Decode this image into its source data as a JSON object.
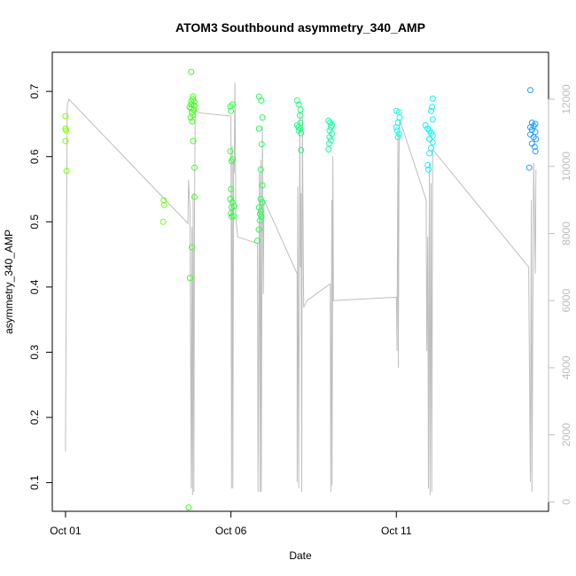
{
  "chart_data": {
    "type": "scatter",
    "title": "ATOM3 Southbound asymmetry_340_AMP",
    "xlabel": "Date",
    "ylabel": "asymmetry_340_AMP",
    "x_ticks": [
      "Oct 01",
      "Oct 06",
      "Oct 11"
    ],
    "x_tick_values": [
      0,
      5,
      10
    ],
    "xlim": [
      -0.4,
      14.6
    ],
    "y_ticks": [
      0.1,
      0.2,
      0.3,
      0.4,
      0.5,
      0.6,
      0.7
    ],
    "ylim": [
      0.056,
      0.76
    ],
    "y2_ticks": [
      0,
      2000,
      4000,
      6000,
      8000,
      10000,
      12000
    ],
    "y2lim": [
      -280,
      13400
    ],
    "colors": {
      "line": "#bebebe",
      "axis": "#000000",
      "right_axis": "#bdbdbd"
    },
    "series": [
      {
        "type": "points",
        "marker": "open-circle",
        "points": [
          [
            0.0,
            0.662,
            "#7fff00"
          ],
          [
            0.0,
            0.643,
            "#7fff00"
          ],
          [
            0.02,
            0.64,
            "#7fff00"
          ],
          [
            0.0,
            0.624,
            "#7fff00"
          ],
          [
            0.03,
            0.578,
            "#7fff00"
          ],
          [
            2.97,
            0.533,
            "#6fff10"
          ],
          [
            2.98,
            0.526,
            "#6fff10"
          ],
          [
            2.95,
            0.5,
            "#6fff10"
          ],
          [
            3.8,
            0.73,
            "#40ff20"
          ],
          [
            3.8,
            0.685,
            "#40ff20"
          ],
          [
            3.85,
            0.692,
            "#40ff20"
          ],
          [
            3.85,
            0.688,
            "#40ff20"
          ],
          [
            3.9,
            0.684,
            "#40ff20"
          ],
          [
            3.8,
            0.68,
            "#40ff20"
          ],
          [
            3.9,
            0.678,
            "#40ff20"
          ],
          [
            3.75,
            0.676,
            "#40ff20"
          ],
          [
            3.8,
            0.674,
            "#40ff20"
          ],
          [
            3.88,
            0.672,
            "#40ff20"
          ],
          [
            3.82,
            0.668,
            "#40ff20"
          ],
          [
            3.85,
            0.664,
            "#40ff20"
          ],
          [
            3.78,
            0.66,
            "#40ff20"
          ],
          [
            3.83,
            0.654,
            "#40ff20"
          ],
          [
            3.86,
            0.624,
            "#40ff20"
          ],
          [
            3.9,
            0.583,
            "#40ff20"
          ],
          [
            3.9,
            0.538,
            "#40ff20"
          ],
          [
            3.82,
            0.461,
            "#40ff20"
          ],
          [
            3.76,
            0.414,
            "#40ff20"
          ],
          [
            3.72,
            0.062,
            "#40ff20"
          ],
          [
            4.98,
            0.677,
            "#30ff40"
          ],
          [
            5.05,
            0.68,
            "#30ff40"
          ],
          [
            5.0,
            0.67,
            "#30ff40"
          ],
          [
            4.98,
            0.608,
            "#30ff40"
          ],
          [
            5.05,
            0.596,
            "#30ff40"
          ],
          [
            5.02,
            0.593,
            "#30ff40"
          ],
          [
            5.0,
            0.55,
            "#30ff40"
          ],
          [
            4.98,
            0.535,
            "#30ff40"
          ],
          [
            5.04,
            0.53,
            "#30ff40"
          ],
          [
            5.1,
            0.524,
            "#30ff40"
          ],
          [
            5.02,
            0.522,
            "#30ff40"
          ],
          [
            5.0,
            0.513,
            "#30ff40"
          ],
          [
            5.08,
            0.509,
            "#30ff40"
          ],
          [
            5.02,
            0.508,
            "#30ff40"
          ],
          [
            5.85,
            0.692,
            "#28ff58"
          ],
          [
            5.92,
            0.686,
            "#28ff58"
          ],
          [
            5.95,
            0.66,
            "#28ff58"
          ],
          [
            5.85,
            0.643,
            "#28ff58"
          ],
          [
            5.93,
            0.619,
            "#28ff58"
          ],
          [
            5.9,
            0.58,
            "#28ff58"
          ],
          [
            5.95,
            0.556,
            "#28ff58"
          ],
          [
            5.9,
            0.535,
            "#28ff58"
          ],
          [
            5.95,
            0.53,
            "#28ff58"
          ],
          [
            5.85,
            0.522,
            "#28ff58"
          ],
          [
            5.9,
            0.516,
            "#28ff58"
          ],
          [
            5.88,
            0.512,
            "#28ff58"
          ],
          [
            5.92,
            0.508,
            "#28ff58"
          ],
          [
            5.87,
            0.502,
            "#28ff58"
          ],
          [
            5.84,
            0.488,
            "#28ff58"
          ],
          [
            5.8,
            0.471,
            "#28ff58"
          ],
          [
            7.0,
            0.686,
            "#20ff80"
          ],
          [
            7.05,
            0.68,
            "#20ff80"
          ],
          [
            7.1,
            0.672,
            "#20ff80"
          ],
          [
            7.08,
            0.663,
            "#20ff80"
          ],
          [
            7.1,
            0.652,
            "#20ff80"
          ],
          [
            7.0,
            0.648,
            "#20ff80"
          ],
          [
            7.05,
            0.645,
            "#20ff80"
          ],
          [
            7.1,
            0.643,
            "#20ff80"
          ],
          [
            7.05,
            0.64,
            "#20ff80"
          ],
          [
            7.12,
            0.636,
            "#20ff80"
          ],
          [
            7.12,
            0.61,
            "#20ff80"
          ],
          [
            7.95,
            0.655,
            "#18ffa0"
          ],
          [
            8.0,
            0.652,
            "#18ffa0"
          ],
          [
            8.05,
            0.648,
            "#18ffa0"
          ],
          [
            8.02,
            0.645,
            "#18ffa0"
          ],
          [
            7.98,
            0.64,
            "#18ffa0"
          ],
          [
            8.05,
            0.635,
            "#18ffa0"
          ],
          [
            7.98,
            0.63,
            "#18ffa0"
          ],
          [
            8.02,
            0.625,
            "#18ffa0"
          ],
          [
            7.97,
            0.62,
            "#18ffa0"
          ],
          [
            7.95,
            0.611,
            "#18ffa0"
          ],
          [
            10.0,
            0.67,
            "#10ffe0"
          ],
          [
            10.08,
            0.668,
            "#10ffe0"
          ],
          [
            10.1,
            0.66,
            "#10ffe0"
          ],
          [
            10.05,
            0.652,
            "#10ffe0"
          ],
          [
            10.0,
            0.645,
            "#10ffe0"
          ],
          [
            10.02,
            0.64,
            "#10ffe0"
          ],
          [
            10.08,
            0.635,
            "#10ffe0"
          ],
          [
            10.05,
            0.63,
            "#10ffe0"
          ],
          [
            10.88,
            0.648,
            "#10f0ff"
          ],
          [
            10.95,
            0.643,
            "#10f0ff"
          ],
          [
            11.0,
            0.64,
            "#10f0ff"
          ],
          [
            11.05,
            0.636,
            "#10f0ff"
          ],
          [
            11.1,
            0.632,
            "#10f0ff"
          ],
          [
            11.0,
            0.627,
            "#10f0ff"
          ],
          [
            11.1,
            0.622,
            "#10f0ff"
          ],
          [
            11.05,
            0.613,
            "#10f0ff"
          ],
          [
            11.0,
            0.605,
            "#10f0ff"
          ],
          [
            11.1,
            0.689,
            "#10f0ff"
          ],
          [
            11.08,
            0.676,
            "#10f0ff"
          ],
          [
            11.05,
            0.67,
            "#10f0ff"
          ],
          [
            11.1,
            0.657,
            "#10f0ff"
          ],
          [
            10.95,
            0.587,
            "#10f0ff"
          ],
          [
            10.97,
            0.58,
            "#10f0ff"
          ],
          [
            14.05,
            0.702,
            "#1ea0ff"
          ],
          [
            14.1,
            0.652,
            "#1ea0ff"
          ],
          [
            14.2,
            0.65,
            "#1ea0ff"
          ],
          [
            14.15,
            0.647,
            "#1ea0ff"
          ],
          [
            14.05,
            0.645,
            "#1ea0ff"
          ],
          [
            14.1,
            0.641,
            "#1ea0ff"
          ],
          [
            14.2,
            0.638,
            "#1ea0ff"
          ],
          [
            14.05,
            0.634,
            "#1ea0ff"
          ],
          [
            14.15,
            0.63,
            "#1ea0ff"
          ],
          [
            14.22,
            0.627,
            "#1ea0ff"
          ],
          [
            14.1,
            0.62,
            "#1ea0ff"
          ],
          [
            14.18,
            0.615,
            "#1ea0ff"
          ],
          [
            14.2,
            0.608,
            "#1ea0ff"
          ],
          [
            14.02,
            0.583,
            "#1ea0ff"
          ]
        ]
      },
      {
        "type": "line",
        "axis": "right",
        "points": [
          [
            0.0,
            1500
          ],
          [
            0.05,
            11800
          ],
          [
            0.1,
            12000
          ],
          [
            3.7,
            8300
          ],
          [
            3.72,
            9600
          ],
          [
            3.76,
            8800
          ],
          [
            3.8,
            400
          ],
          [
            3.82,
            8200
          ],
          [
            3.84,
            200
          ],
          [
            3.86,
            9200
          ],
          [
            3.88,
            300
          ],
          [
            3.9,
            8600
          ],
          [
            3.92,
            11700
          ],
          [
            4.0,
            11600
          ],
          [
            5.0,
            11500
          ],
          [
            5.02,
            400
          ],
          [
            5.04,
            10600
          ],
          [
            5.06,
            400
          ],
          [
            5.08,
            10200
          ],
          [
            5.1,
            9800
          ],
          [
            5.12,
            12500
          ],
          [
            5.15,
            8500
          ],
          [
            5.2,
            7900
          ],
          [
            5.8,
            7700
          ],
          [
            5.82,
            300
          ],
          [
            5.86,
            9800
          ],
          [
            5.88,
            300
          ],
          [
            5.9,
            10200
          ],
          [
            5.92,
            300
          ],
          [
            5.95,
            11200
          ],
          [
            5.98,
            6200
          ],
          [
            6.0,
            9000
          ],
          [
            7.0,
            6800
          ],
          [
            7.0,
            600
          ],
          [
            7.02,
            9400
          ],
          [
            7.05,
            400
          ],
          [
            7.08,
            11600
          ],
          [
            7.1,
            7000
          ],
          [
            7.12,
            9200
          ],
          [
            7.14,
            300
          ],
          [
            7.16,
            11700
          ],
          [
            7.2,
            5800
          ],
          [
            7.3,
            6000
          ],
          [
            8.0,
            6500
          ],
          [
            8.02,
            300
          ],
          [
            8.05,
            9000
          ],
          [
            8.06,
            500
          ],
          [
            8.08,
            10300
          ],
          [
            8.1,
            6000
          ],
          [
            10.0,
            6100
          ],
          [
            10.02,
            4500
          ],
          [
            10.05,
            11000
          ],
          [
            10.06,
            4000
          ],
          [
            10.08,
            10300
          ],
          [
            10.1,
            11400
          ],
          [
            10.9,
            9000
          ],
          [
            10.92,
            4500
          ],
          [
            10.95,
            7900
          ],
          [
            10.97,
            400
          ],
          [
            11.0,
            10100
          ],
          [
            11.02,
            200
          ],
          [
            11.05,
            9500
          ],
          [
            11.07,
            300
          ],
          [
            11.1,
            10500
          ],
          [
            14.0,
            7000
          ],
          [
            14.05,
            600
          ],
          [
            14.08,
            9000
          ],
          [
            14.1,
            300
          ],
          [
            14.15,
            10100
          ],
          [
            14.2,
            6800
          ],
          [
            14.22,
            9900
          ]
        ]
      }
    ]
  }
}
